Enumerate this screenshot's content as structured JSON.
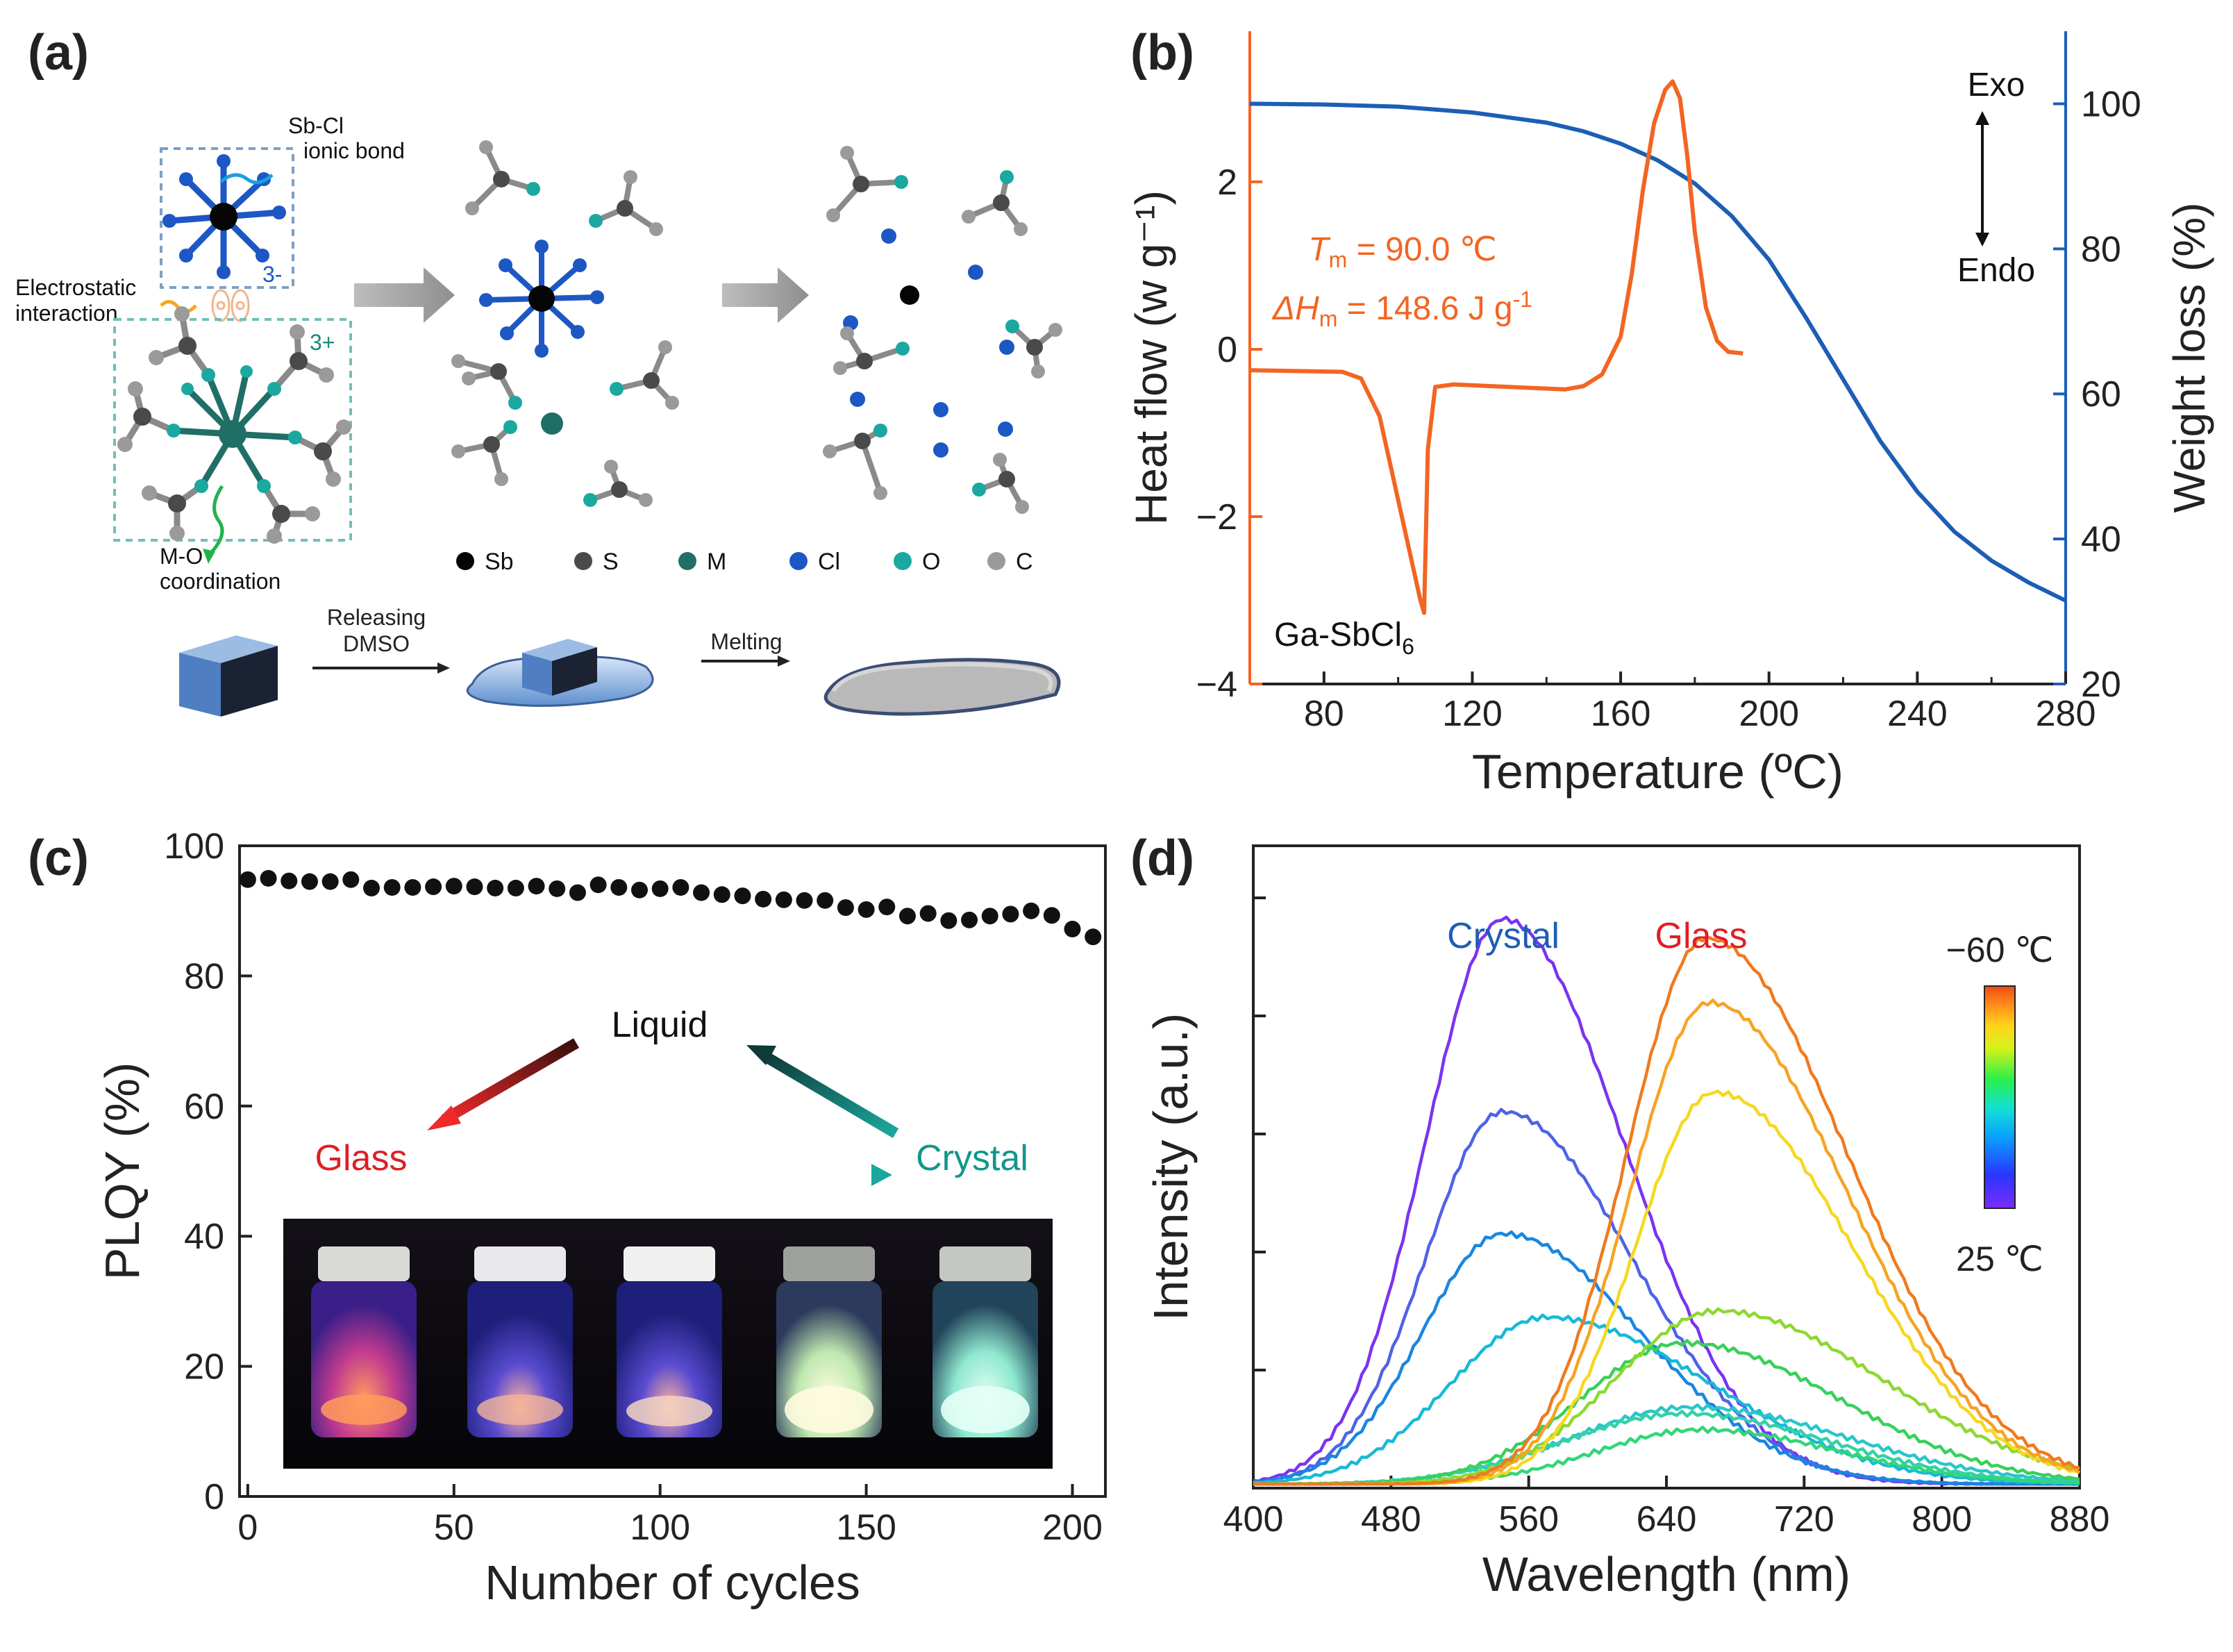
{
  "panels": {
    "a": {
      "letter": "(a)"
    },
    "b": {
      "letter": "(b)"
    },
    "c": {
      "letter": "(c)"
    },
    "d": {
      "letter": "(d)"
    }
  },
  "schematic": {
    "labels": {
      "sbcl_bond_line1": "Sb-Cl",
      "sbcl_bond_line2": "ionic bond",
      "charge_anion": "3-",
      "electrostatic_line1": "Electrostatic",
      "electrostatic_line2": "interaction",
      "charge_cation": "3+",
      "mo_line1": "M-O",
      "mo_line2": "coordination",
      "releasing_line1": "Releasing",
      "releasing_line2": "DMSO",
      "melting": "Melting"
    },
    "legend": [
      {
        "symbol": "Sb",
        "color": "#050505"
      },
      {
        "symbol": "S",
        "color": "#4a4a4a"
      },
      {
        "symbol": "M",
        "color": "#1f6f66"
      },
      {
        "symbol": "Cl",
        "color": "#1d57c4"
      },
      {
        "symbol": "O",
        "color": "#1aa8a0"
      },
      {
        "symbol": "C",
        "color": "#9a9a9a"
      }
    ]
  },
  "inset": {
    "liquid": "Liquid",
    "glass": "Glass",
    "crystal": "Crystal"
  },
  "chart_data": [
    {
      "panel": "b",
      "type": "line",
      "xlabel": "Temperature  (ºC)",
      "ylabel_left": "Heat flow (w g⁻¹)",
      "ylabel_right": "Weight loss (%)",
      "xlim": [
        60,
        280
      ],
      "xticks": [
        80,
        120,
        160,
        200,
        240,
        280
      ],
      "ylim_left": [
        -4,
        3.8
      ],
      "yticks_left": [
        -4,
        -2,
        0,
        2
      ],
      "ylim_right": [
        20,
        110
      ],
      "yticks_right": [
        20,
        40,
        60,
        80,
        100
      ],
      "annotations": {
        "tm_text": "T",
        "tm_sub": "m",
        "tm_value": " = 90.0 ℃",
        "dh_text": "ΔH",
        "dh_sub": "m",
        "dh_value": " = 148.6 J g",
        "dh_sup": "-1",
        "exo": "Exo",
        "endo": "Endo",
        "sample": "Ga-SbCl",
        "sample_sub": "6"
      },
      "series": [
        {
          "axis": "left",
          "color": "#f26522",
          "x": [
            60,
            85,
            90,
            95,
            100,
            104,
            106,
            107,
            108,
            110,
            115,
            130,
            145,
            150,
            155,
            160,
            163,
            166,
            169,
            172,
            174,
            176,
            178,
            180,
            183,
            186,
            189,
            193
          ],
          "y": [
            -0.25,
            -0.27,
            -0.35,
            -0.8,
            -1.8,
            -2.6,
            -3.0,
            -3.15,
            -1.2,
            -0.45,
            -0.42,
            -0.45,
            -0.48,
            -0.44,
            -0.3,
            0.15,
            0.9,
            1.9,
            2.7,
            3.1,
            3.2,
            3.0,
            2.3,
            1.4,
            0.5,
            0.1,
            -0.03,
            -0.05
          ]
        },
        {
          "axis": "right",
          "color": "#1d5eb5",
          "x": [
            60,
            80,
            100,
            120,
            140,
            150,
            160,
            170,
            180,
            190,
            200,
            210,
            220,
            230,
            240,
            250,
            260,
            270,
            280
          ],
          "y": [
            100,
            99.9,
            99.6,
            98.8,
            97.4,
            96.2,
            94.5,
            92.2,
            89.0,
            84.5,
            78.5,
            70.5,
            62.0,
            53.5,
            46.5,
            41.0,
            37.0,
            34.0,
            31.5
          ]
        }
      ]
    },
    {
      "panel": "c",
      "type": "scatter",
      "xlabel": "Number of cycles",
      "ylabel": "PLQY (%)",
      "xlim": [
        -2,
        208
      ],
      "xticks": [
        0,
        50,
        100,
        150,
        200
      ],
      "ylim": [
        0,
        100
      ],
      "yticks": [
        0,
        20,
        40,
        60,
        80,
        100
      ],
      "x": [
        0,
        5,
        10,
        15,
        20,
        25,
        30,
        35,
        40,
        45,
        50,
        55,
        60,
        65,
        70,
        75,
        80,
        85,
        90,
        95,
        100,
        105,
        110,
        115,
        120,
        125,
        130,
        135,
        140,
        145,
        150,
        155,
        160,
        165,
        170,
        175,
        180,
        185,
        190,
        195,
        200,
        205
      ],
      "y": [
        94.8,
        95.0,
        94.6,
        94.5,
        94.5,
        94.8,
        93.5,
        93.6,
        93.6,
        93.7,
        93.8,
        93.7,
        93.5,
        93.5,
        93.8,
        93.4,
        92.8,
        94.0,
        93.6,
        93.2,
        93.4,
        93.6,
        92.8,
        92.5,
        92.3,
        91.8,
        91.7,
        91.6,
        91.6,
        90.5,
        90.2,
        90.6,
        89.2,
        89.6,
        88.5,
        88.6,
        89.2,
        89.5,
        90.0,
        89.3,
        87.2,
        86.0
      ]
    },
    {
      "panel": "d",
      "type": "line",
      "xlabel": "Wavelength  (nm)",
      "ylabel": "Intensity (a.u.)",
      "xlim": [
        400,
        880
      ],
      "xticks": [
        400,
        480,
        560,
        640,
        720,
        800,
        880
      ],
      "ylim": [
        0,
        1.0
      ],
      "legend_labels": {
        "crystal": "Crystal",
        "glass": "Glass"
      },
      "colorbar": {
        "top": "−60 ℃",
        "bottom": "25 ℃",
        "colors": [
          "#7b2cff",
          "#2a36ff",
          "#0aa0ff",
          "#13e0d4",
          "#2bf04a",
          "#d6f21a",
          "#ffd41a",
          "#ff8a1a",
          "#f04a14"
        ]
      },
      "series": [
        {
          "peak": 545,
          "amplitude": 0.88,
          "width_left": 45,
          "width_right": 70,
          "color": "#7b33f0"
        },
        {
          "peak": 545,
          "amplitude": 0.58,
          "width_left": 45,
          "width_right": 75,
          "color": "#4f62e8"
        },
        {
          "peak": 545,
          "amplitude": 0.39,
          "width_left": 47,
          "width_right": 80,
          "color": "#1a86e0"
        },
        {
          "peak": 570,
          "amplitude": 0.26,
          "width_left": 55,
          "width_right": 95,
          "color": "#18b9d8"
        },
        {
          "peak": 655,
          "amplitude": 0.12,
          "width_left": 70,
          "width_right": 90,
          "color": "#2ac6c9"
        },
        {
          "peak": 650,
          "amplitude": 0.11,
          "width_left": 70,
          "width_right": 85,
          "color": "#35d1a8"
        },
        {
          "peak": 660,
          "amplitude": 0.085,
          "width_left": 60,
          "width_right": 80,
          "color": "#32d67a"
        },
        {
          "peak": 650,
          "amplitude": 0.22,
          "width_left": 60,
          "width_right": 90,
          "color": "#3ad05a"
        },
        {
          "peak": 670,
          "amplitude": 0.27,
          "width_left": 60,
          "width_right": 95,
          "color": "#8ed832"
        },
        {
          "peak": 668,
          "amplitude": 0.61,
          "width_left": 46,
          "width_right": 80,
          "color": "#f6d81e"
        },
        {
          "peak": 665,
          "amplitude": 0.75,
          "width_left": 46,
          "width_right": 80,
          "color": "#f7a323"
        },
        {
          "peak": 663,
          "amplitude": 0.85,
          "width_left": 46,
          "width_right": 82,
          "color": "#f07a1e"
        }
      ]
    }
  ]
}
